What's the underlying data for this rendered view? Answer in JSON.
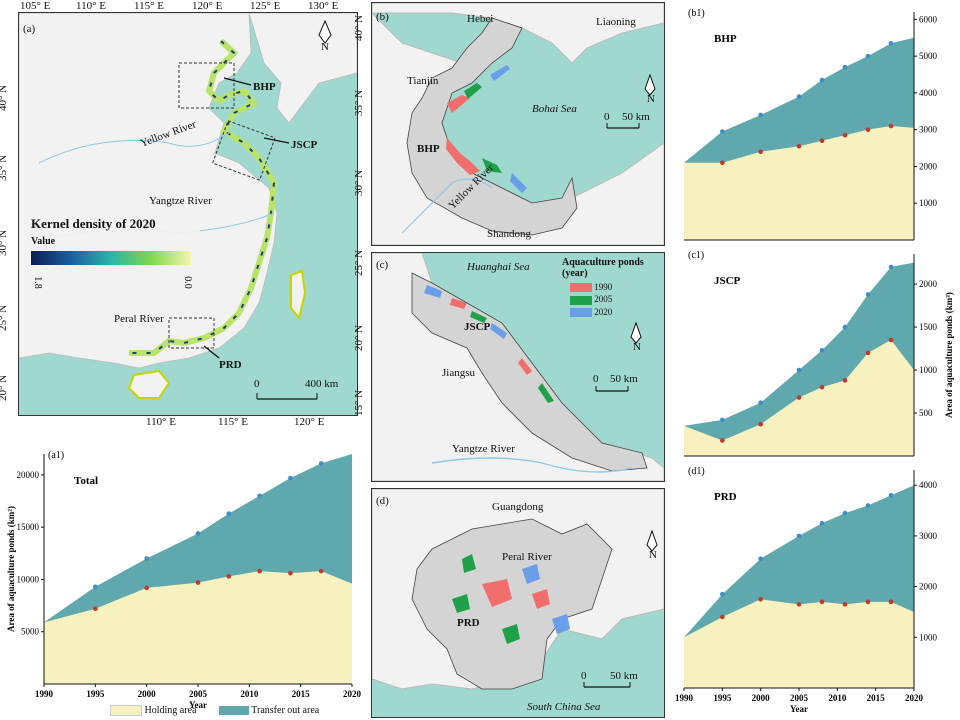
{
  "colors": {
    "sea": "#9fd8cf",
    "land": "#f2f2f2",
    "study_area": "#d4d4d4",
    "holding": "#f6f1be",
    "transfer": "#5fa9ae",
    "point_blue": "#3c8fc6",
    "point_red": "#c0392b",
    "c1990": "#f06e6e",
    "c2005": "#1fa04a",
    "c2020": "#6a9ee8"
  },
  "panel_a": {
    "tag": "(a)",
    "lon_top": [
      "105° E",
      "110° E",
      "115° E",
      "120° E",
      "125° E",
      "130° E"
    ],
    "lon_bottom": [
      "110° E",
      "115° E",
      "120° E"
    ],
    "lat_left": [
      "40° N",
      "35° N",
      "30° N",
      "25° N",
      "20° N"
    ],
    "lat_right": [
      "40° N",
      "35° N",
      "30° N",
      "25° N",
      "20° N",
      "15° N"
    ],
    "legend_title": "Kernel density of 2020",
    "legend_value": "Value",
    "legend_max": "1.8",
    "legend_min": "0.0",
    "labels": {
      "bhp": "BHP",
      "jscp": "JSCP",
      "prd": "PRD",
      "yellow_river": "Yellow River",
      "yangtze": "Yangtze River",
      "peral": "Peral River"
    },
    "scale_label": "400 km",
    "scale_zero": "0",
    "north": "N"
  },
  "panel_b": {
    "tag": "(b)",
    "labels": {
      "hebei": "Hebei",
      "liaoning": "Liaoning",
      "tianjin": "Tianjin",
      "bohai": "Bohai Sea",
      "bhp": "BHP",
      "yellow_river": "Yellow River",
      "shandong": "Shandong"
    },
    "scale_zero": "0",
    "scale_label": "50 km",
    "north": "N"
  },
  "panel_c": {
    "tag": "(c)",
    "labels": {
      "huanghai": "Huanghai Sea",
      "jscp": "JSCP",
      "jiangsu": "Jiangsu",
      "yangtze": "Yangtze River"
    },
    "legend_title": "Aquaculture ponds (year)",
    "legend_items": [
      "1990",
      "2005",
      "2020"
    ],
    "scale_zero": "0",
    "scale_label": "50 km",
    "north": "N"
  },
  "panel_d": {
    "tag": "(d)",
    "labels": {
      "guangdong": "Guangdong",
      "peral": "Peral River",
      "prd": "PRD",
      "scs": "South China Sea"
    },
    "scale_zero": "0",
    "scale_label": "50 km",
    "north": "N"
  },
  "legend_bottom": {
    "holding": "Holding area",
    "transfer": "Transfer out area"
  },
  "chart_data": [
    {
      "type": "area",
      "tag": "(a1)",
      "title": "Total",
      "ylabel": "Area of aquaculture ponds (km²)",
      "xlabel": "Year",
      "x": [
        1990,
        1995,
        2000,
        2005,
        2008,
        2011,
        2014,
        2017,
        2020
      ],
      "series": [
        {
          "name": "Holding area",
          "values": [
            5900,
            7200,
            9200,
            9700,
            10300,
            10800,
            10600,
            10800,
            9600
          ]
        },
        {
          "name": "Transfer out area",
          "values": [
            5900,
            9300,
            12000,
            14400,
            16300,
            18000,
            19700,
            21100,
            22000
          ]
        }
      ],
      "xlim": [
        1990,
        2020
      ],
      "ylim": [
        0,
        22000
      ],
      "yticks": [
        5000,
        10000,
        15000,
        20000
      ],
      "xticks": [
        1990,
        1995,
        2000,
        2005,
        2010,
        2015,
        2020
      ]
    },
    {
      "type": "area",
      "tag": "(b1)",
      "title": "BHP",
      "ylabel": "",
      "xlabel": "",
      "x": [
        1990,
        1995,
        2000,
        2005,
        2008,
        2011,
        2014,
        2017,
        2020
      ],
      "series": [
        {
          "name": "Holding area",
          "values": [
            2100,
            2100,
            2400,
            2550,
            2700,
            2850,
            3000,
            3100,
            3050
          ]
        },
        {
          "name": "Transfer out area",
          "values": [
            2100,
            2950,
            3400,
            3900,
            4350,
            4700,
            5000,
            5350,
            5500
          ]
        }
      ],
      "xlim": [
        1990,
        2020
      ],
      "ylim": [
        0,
        6200
      ],
      "yticks": [
        1000,
        2000,
        3000,
        4000,
        5000,
        6000
      ]
    },
    {
      "type": "area",
      "tag": "(c1)",
      "title": "JSCP",
      "ylabel": "Area of aquaculture ponds (km²)",
      "xlabel": "",
      "x": [
        1990,
        1995,
        2000,
        2005,
        2008,
        2011,
        2014,
        2017,
        2020
      ],
      "series": [
        {
          "name": "Holding area",
          "values": [
            350,
            180,
            370,
            680,
            800,
            880,
            1200,
            1350,
            1000
          ]
        },
        {
          "name": "Transfer out area",
          "values": [
            350,
            420,
            620,
            1000,
            1230,
            1500,
            1880,
            2200,
            2250
          ]
        }
      ],
      "xlim": [
        1990,
        2020
      ],
      "ylim": [
        0,
        2350
      ],
      "yticks": [
        500,
        1000,
        1500,
        2000
      ]
    },
    {
      "type": "area",
      "tag": "(d1)",
      "title": "PRD",
      "ylabel": "",
      "xlabel": "Year",
      "x": [
        1990,
        1995,
        2000,
        2005,
        2008,
        2011,
        2014,
        2017,
        2020
      ],
      "series": [
        {
          "name": "Holding area",
          "values": [
            1000,
            1400,
            1750,
            1650,
            1700,
            1650,
            1700,
            1700,
            1500
          ]
        },
        {
          "name": "Transfer out area",
          "values": [
            1000,
            1850,
            2550,
            3000,
            3250,
            3450,
            3600,
            3800,
            4000
          ]
        }
      ],
      "xlim": [
        1990,
        2020
      ],
      "ylim": [
        0,
        4300
      ],
      "yticks": [
        1000,
        2000,
        3000,
        4000
      ],
      "xticks": [
        1990,
        1995,
        2000,
        2005,
        2010,
        2015,
        2020
      ]
    }
  ]
}
